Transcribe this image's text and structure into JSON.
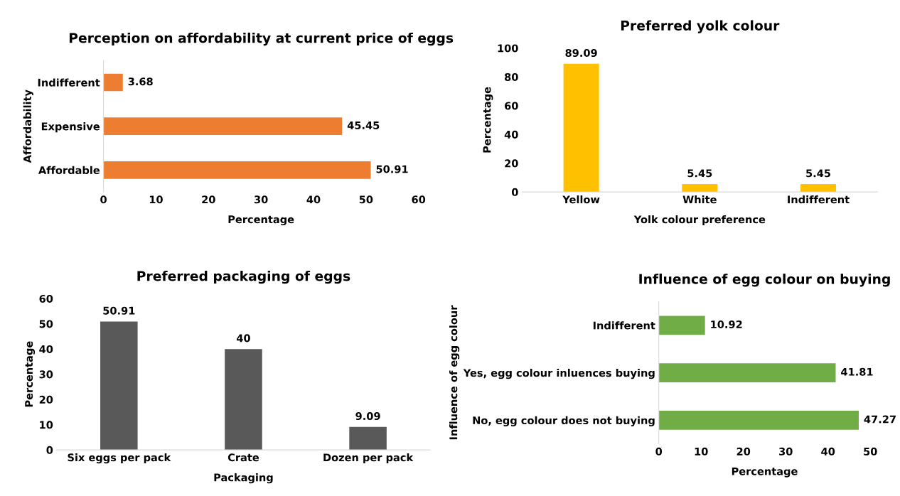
{
  "chart_data": [
    {
      "type": "bar",
      "orientation": "horizontal",
      "title": "Perception on affordability at current price of eggs",
      "xlabel": "Percentage",
      "ylabel": "Affordability",
      "categories": [
        "Indifferent",
        "Expensive",
        "Affordable"
      ],
      "values": [
        3.68,
        45.45,
        50.91
      ],
      "color": "#ed7d31",
      "xlim": [
        0,
        60
      ],
      "xticks": [
        0,
        10,
        20,
        30,
        40,
        50,
        60
      ],
      "data_labels": true,
      "grid": false
    },
    {
      "type": "bar",
      "title": "Preferred yolk colour",
      "xlabel": "Yolk colour preference",
      "ylabel": "Percentage",
      "categories": [
        "Yellow",
        "White",
        "Indifferent"
      ],
      "values": [
        89.09,
        5.45,
        5.45
      ],
      "color": "#ffc000",
      "ylim": [
        0,
        100
      ],
      "yticks": [
        0,
        20,
        40,
        60,
        80,
        100
      ],
      "data_labels": true,
      "grid": false
    },
    {
      "type": "bar",
      "title": "Preferred packaging of eggs",
      "xlabel": "Packaging",
      "ylabel": "Percentage",
      "categories": [
        "Six eggs per pack",
        "Crate",
        "Dozen per pack"
      ],
      "values": [
        50.91,
        40,
        9.09
      ],
      "color": "#595959",
      "ylim": [
        0,
        60
      ],
      "yticks": [
        0,
        10,
        20,
        30,
        40,
        50,
        60
      ],
      "data_labels": true,
      "grid": false
    },
    {
      "type": "bar",
      "orientation": "horizontal",
      "title": "Influence of egg colour on buying",
      "xlabel": "Percentage",
      "ylabel": "Influence of egg colour",
      "categories": [
        "Indifferent",
        "Yes, egg colour inluences buying",
        "No, egg colour does not buying"
      ],
      "values": [
        10.92,
        41.81,
        47.27
      ],
      "color": "#70ad47",
      "xlim": [
        0,
        50
      ],
      "xticks": [
        0,
        10,
        20,
        30,
        40,
        50
      ],
      "data_labels": true,
      "grid": false
    }
  ]
}
